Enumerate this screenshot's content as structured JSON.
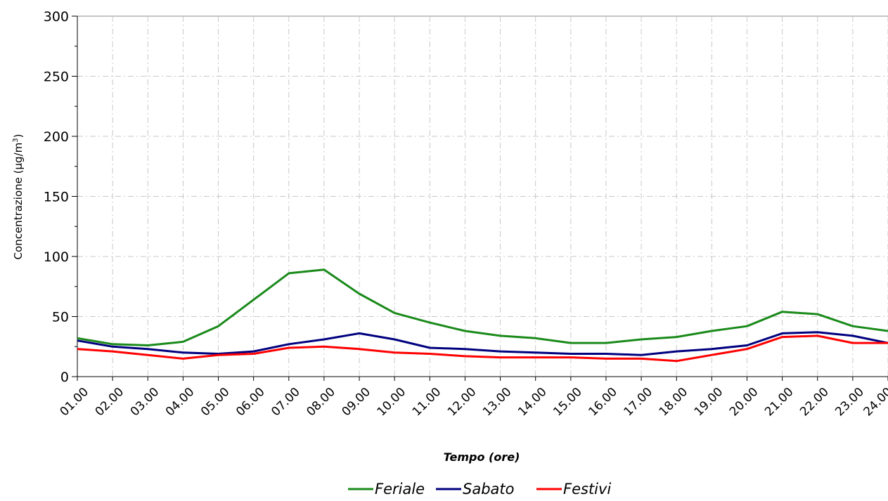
{
  "chart_data": {
    "type": "line",
    "title": "",
    "xlabel": "Tempo (ore)",
    "ylabel_main": "Concentrazione (µg/m",
    "ylabel_sup": "3",
    "ylabel_end": ")",
    "ylim": [
      0,
      300
    ],
    "yticks": [
      "0",
      "50",
      "100",
      "150",
      "200",
      "250",
      "300"
    ],
    "ytick_values": [
      0,
      50,
      100,
      150,
      200,
      250,
      300
    ],
    "grid": true,
    "legend_position": "bottom-center",
    "categories": [
      "01.00",
      "02.00",
      "03.00",
      "04.00",
      "05.00",
      "06.00",
      "07.00",
      "08.00",
      "09.00",
      "10.00",
      "11.00",
      "12.00",
      "13.00",
      "14.00",
      "15.00",
      "16.00",
      "17.00",
      "18.00",
      "19.00",
      "20.00",
      "21.00",
      "22.00",
      "23.00",
      "24.00"
    ],
    "series": [
      {
        "name": "Feriale",
        "color": "#1a8a1a",
        "values": [
          32,
          27,
          26,
          29,
          42,
          64,
          86,
          89,
          69,
          53,
          45,
          38,
          34,
          32,
          28,
          28,
          31,
          33,
          38,
          42,
          54,
          52,
          42,
          38
        ]
      },
      {
        "name": "Sabato",
        "color": "#00007f",
        "values": [
          30,
          25,
          23,
          20,
          19,
          21,
          27,
          31,
          36,
          31,
          24,
          23,
          21,
          20,
          19,
          19,
          18,
          21,
          23,
          26,
          36,
          37,
          34,
          28
        ]
      },
      {
        "name": "Festivi",
        "color": "#ff0000",
        "values": [
          23,
          21,
          18,
          15,
          18,
          19,
          24,
          25,
          23,
          20,
          19,
          17,
          16,
          16,
          16,
          15,
          15,
          13,
          18,
          23,
          33,
          34,
          28,
          28
        ]
      }
    ]
  }
}
